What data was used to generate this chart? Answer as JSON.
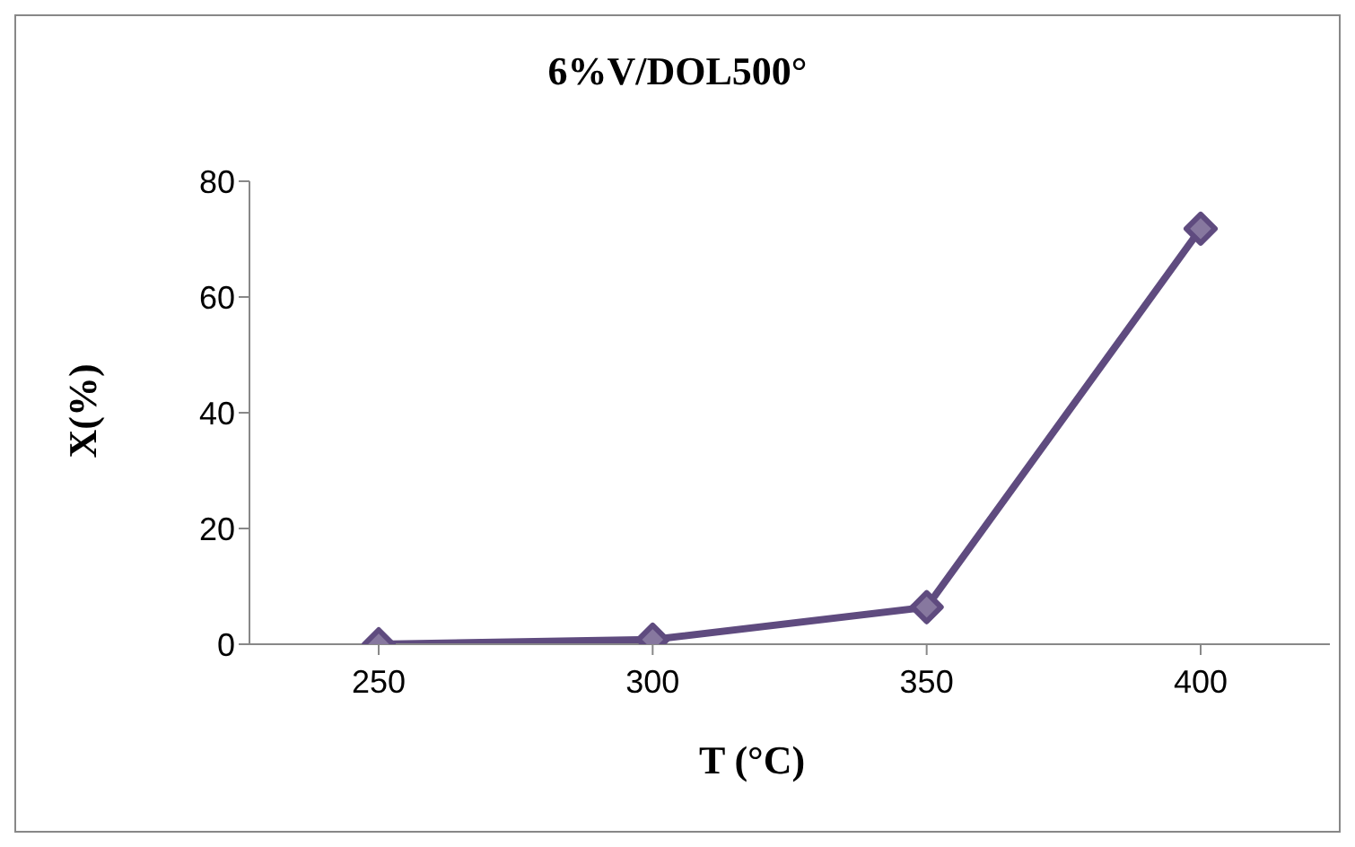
{
  "chart_data": {
    "type": "line",
    "title": "6%V/DOL500°",
    "xlabel": "T (°C)",
    "ylabel": "X(%)",
    "categories": [
      "250",
      "300",
      "350",
      "400"
    ],
    "series": [
      {
        "color": "#5f4b7f",
        "values": [
          0,
          0.8,
          6.4,
          71.8
        ]
      }
    ],
    "ylim": [
      0,
      80
    ],
    "yticks": [
      0,
      20,
      40,
      60,
      80
    ],
    "grid": false,
    "legend": false,
    "marker": "diamond",
    "line_style": "solid"
  }
}
